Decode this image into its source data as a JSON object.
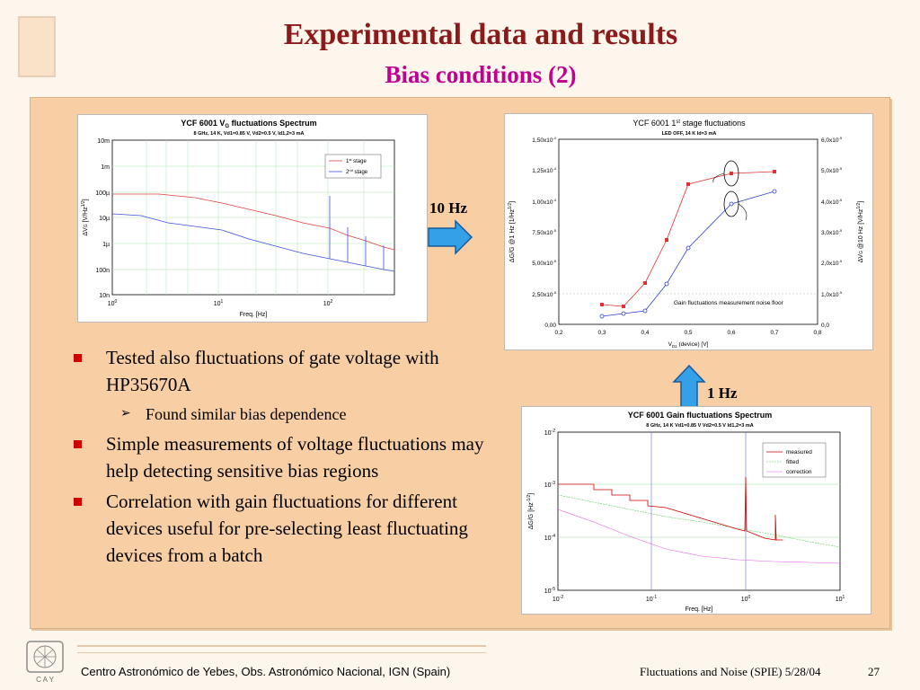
{
  "title": "Experimental data and results",
  "subtitle": "Bias conditions (2)",
  "bullets": [
    {
      "text": "Tested also fluctuations of gate voltage with HP35670A"
    },
    {
      "text": "Simple measurements of voltage fluctuations may help detecting sensitive bias regions"
    },
    {
      "text": "Correlation with gain fluctuations for different devices useful for pre-selecting least fluctuating devices from a batch"
    }
  ],
  "sub_bullet": "Found similar bias dependence",
  "arrow_labels": {
    "right": "10 Hz",
    "up": "1 Hz"
  },
  "footer": {
    "left": "Centro Astronómico de Yebes, Obs. Astronómico Nacional, IGN (Spain)",
    "right": "Fluctuations and Noise (SPIE)  5/28/04",
    "page": "27",
    "logo_text": "C A Y"
  },
  "colors": {
    "title": "#8b1a1a",
    "subtitle": "#c00090",
    "panel": "#f8cfa5",
    "bullet": "#cc0000",
    "arrow": "#33a0e8"
  },
  "chart_data": [
    {
      "type": "line",
      "title": "YCF 6001 VG fluctuations Spectrum",
      "subtitle": "8 GHz, 14 K, Vd1=0.85 V, Vd2=0.5 V, Id1,2=3 mA",
      "xlabel": "Freq. [Hz]",
      "ylabel": "ΔVG [V/Hz1/2]",
      "xscale": "log",
      "yscale": "log",
      "x_ticks": [
        "10^0",
        "10^1",
        "10^2"
      ],
      "y_ticks": [
        "10m",
        "1m",
        "100µ",
        "10µ",
        "1µ",
        "100n",
        "10n"
      ],
      "legend": [
        "1st stage",
        "2nd stage"
      ],
      "series": [
        {
          "name": "1st stage",
          "x": [
            1,
            3,
            10,
            30,
            100,
            300
          ],
          "y": [
            7e-05,
            7e-05,
            4e-05,
            2e-05,
            8e-06,
            4e-06
          ]
        },
        {
          "name": "2nd stage",
          "x": [
            1,
            3,
            10,
            30,
            100,
            300
          ],
          "y": [
            1.4e-05,
            9e-06,
            6e-06,
            3e-06,
            1.5e-06,
            8e-07
          ]
        }
      ]
    },
    {
      "type": "line",
      "title": "YCF 6001 1st stage fluctuations",
      "subtitle": "LED OFF, 14 K  Id=3 mA",
      "xlabel": "VD1 (device) [V]",
      "ylabel": "ΔG/G @1 Hz [1/Hz1/2]",
      "y2label": "ΔVG @10 Hz [V/Hz1/2]",
      "x_ticks": [
        "0,2",
        "0,3",
        "0,4",
        "0,5",
        "0,6",
        "0,7",
        "0,8"
      ],
      "y_ticks": [
        "0,00",
        "2,50x10-5",
        "5,00x10-5",
        "7,50x10-5",
        "1,00x10-4",
        "1,25x10-4",
        "1,50x10-4"
      ],
      "y2_ticks": [
        "0,0",
        "1,0x10-5",
        "2,0x10-5",
        "3,0x10-5",
        "4,0x10-5",
        "5,0x10-5",
        "6,0x10-5"
      ],
      "xlim": [
        0.2,
        0.8
      ],
      "ylim": [
        0,
        0.00015
      ],
      "y2lim": [
        0,
        6e-05
      ],
      "annotation": "Gain fluctuations measurement noise floor",
      "series": [
        {
          "x": [
            0.3,
            0.35,
            0.4,
            0.45,
            0.5,
            0.6,
            0.7
          ],
          "y": [
            1.6e-05,
            1.4e-05,
            3.3e-05,
            6.5e-05,
            0.00011,
            0.000118,
            0.00012
          ]
        },
        {
          "x": [
            0.3,
            0.35,
            0.4,
            0.45,
            0.5,
            0.6,
            0.7
          ],
          "y": [
            1.8e-06,
            2.5e-06,
            3.5e-06,
            1.2e-05,
            2.4e-05,
            3.8e-05,
            4.2e-05
          ]
        }
      ]
    },
    {
      "type": "line",
      "title": "YCF 6001 Gain fluctuations Spectrum",
      "subtitle": "8 GHz, 14 K   Vd1=0.85 V Vd2=0.5 V Id1,2=3 mA",
      "xlabel": "Freq. [Hz]",
      "ylabel": "ΔG/G  [Hz-1/2]",
      "xscale": "log",
      "yscale": "log",
      "x_ticks": [
        "10-2",
        "10-1",
        "100",
        "101"
      ],
      "y_ticks": [
        "10-2",
        "10-3",
        "10-4",
        "10-5"
      ],
      "legend": [
        "measured",
        "fitted",
        "correction"
      ],
      "series": [
        {
          "name": "measured",
          "x": [
            0.01,
            0.03,
            0.1,
            0.3,
            1,
            2.5
          ],
          "y": [
            0.001,
            0.0007,
            0.0004,
            0.00025,
            0.00013,
            0.0001
          ]
        },
        {
          "name": "fitted",
          "x": [
            0.01,
            0.1,
            1,
            10
          ],
          "y": [
            0.0006,
            0.0003,
            0.00015,
            8e-05
          ]
        },
        {
          "name": "correction",
          "x": [
            0.01,
            0.1,
            1,
            10
          ],
          "y": [
            0.0002,
            5e-05,
            3.5e-05,
            3e-05
          ]
        }
      ]
    }
  ]
}
